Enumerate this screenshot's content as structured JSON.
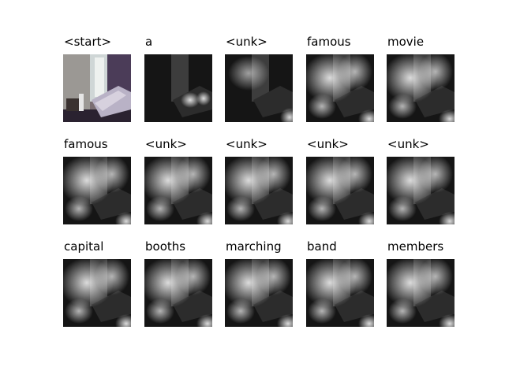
{
  "figure": {
    "captions": [
      "<start>",
      "a",
      "<unk>",
      "famous",
      "movie",
      "famous",
      "<unk>",
      "<unk>",
      "<unk>",
      "<unk>",
      "capital",
      "booths",
      "marching",
      "band",
      "members"
    ]
  }
}
